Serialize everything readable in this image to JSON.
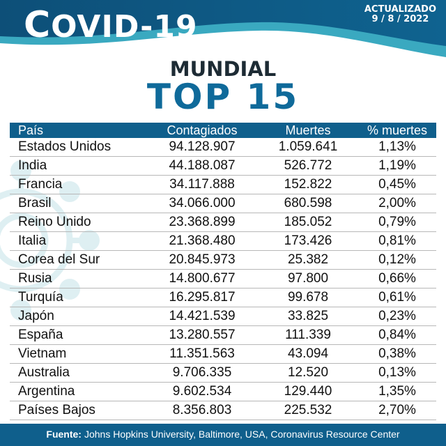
{
  "header": {
    "brand_first": "C",
    "brand_rest": "OVID-19",
    "updated_label": "ACTUALIZADO",
    "updated_date": "9 / 8 / 2022"
  },
  "subtitle": "MUNDIAL",
  "title": "TOP 15",
  "colors": {
    "navy": "#0f5f8c",
    "teal": "#2e9fb6",
    "title_blue": "#0f6a9a"
  },
  "table": {
    "headers": [
      "País",
      "Contagiados",
      "Muertes",
      "% muertes"
    ],
    "rows": [
      [
        "Estados Unidos",
        "94.128.907",
        "1.059.641",
        "1,13%"
      ],
      [
        "India",
        "44.188.087",
        "526.772",
        "1,19%"
      ],
      [
        "Francia",
        "34.117.888",
        "152.822",
        "0,45%"
      ],
      [
        "Brasil",
        "34.066.000",
        "680.598",
        "2,00%"
      ],
      [
        "Reino Unido",
        "23.368.899",
        "185.052",
        "0,79%"
      ],
      [
        "Italia",
        "21.368.480",
        "173.426",
        "0,81%"
      ],
      [
        "Corea del Sur",
        "20.845.973",
        "25.382",
        "0,12%"
      ],
      [
        "Rusia",
        "14.800.677",
        "97.800",
        "0,66%"
      ],
      [
        "Turquía",
        "16.295.817",
        "99.678",
        "0,61%"
      ],
      [
        "Japón",
        "14.421.539",
        "33.825",
        "0,23%"
      ],
      [
        "España",
        "13.280.557",
        "111.339",
        "0,84%"
      ],
      [
        "Vietnam",
        "11.351.563",
        "43.094",
        "0,38%"
      ],
      [
        "Australia",
        "9.706.335",
        "12.520",
        "0,13%"
      ],
      [
        "Argentina",
        "9.602.534",
        "129.440",
        "1,35%"
      ],
      [
        "Países Bajos",
        "8.356.803",
        "225.532",
        "2,70%"
      ]
    ]
  },
  "footer": {
    "label": "Fuente:",
    "text": "Johns Hopkins University, Baltimore, USA, Coronavirus Resource Center"
  },
  "icons": {
    "background": "virus-icon"
  }
}
